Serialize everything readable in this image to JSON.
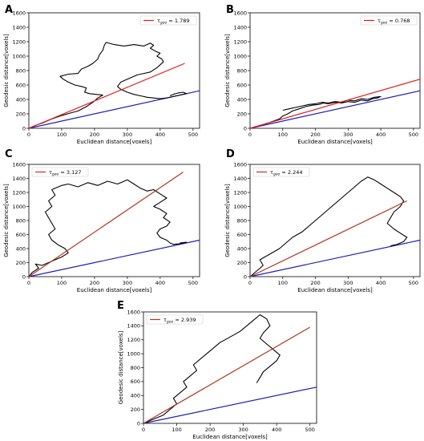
{
  "chart_data": [
    {
      "panel": "A",
      "type": "line",
      "xlabel": "Euclidean distance[voxels]",
      "ylabel": "Geodesic distance[voxels]",
      "xlim": [
        0,
        520
      ],
      "ylim": [
        0,
        1600
      ],
      "xticks": [
        0,
        100,
        200,
        300,
        400,
        500
      ],
      "yticks": [
        0,
        200,
        400,
        600,
        800,
        1000,
        1200,
        1400,
        1600
      ],
      "legend": {
        "symbol": "τ",
        "subscript": "geo",
        "value": "1.789",
        "position": "top-right"
      },
      "fit_line": {
        "color": "#e3191c",
        "x": [
          0,
          475
        ],
        "y": [
          0,
          900
        ]
      },
      "identity_line": {
        "color": "#1d1dbe",
        "x": [
          0,
          520
        ],
        "y": [
          0,
          520
        ]
      },
      "geodesic_curve": {
        "color": "#000000",
        "x": [
          0,
          20,
          45,
          70,
          95,
          125,
          150,
          175,
          195,
          210,
          225,
          205,
          185,
          170,
          175,
          160,
          140,
          120,
          105,
          95,
          120,
          150,
          160,
          180,
          195,
          210,
          215,
          225,
          230,
          235,
          260,
          290,
          320,
          350,
          370,
          380,
          370,
          385,
          400,
          390,
          405,
          410,
          400,
          390,
          380,
          370,
          350,
          330,
          310,
          300,
          280,
          270,
          280,
          300,
          320,
          340,
          360,
          380,
          400,
          420,
          440,
          460,
          470,
          480,
          470,
          455,
          440,
          430
        ],
        "y": [
          0,
          40,
          80,
          130,
          170,
          210,
          240,
          300,
          360,
          420,
          460,
          470,
          480,
          500,
          560,
          580,
          600,
          640,
          680,
          720,
          750,
          760,
          820,
          860,
          900,
          960,
          1020,
          1080,
          1150,
          1190,
          1160,
          1140,
          1160,
          1140,
          1180,
          1150,
          1110,
          1070,
          1040,
          1000,
          960,
          920,
          880,
          840,
          810,
          780,
          760,
          740,
          700,
          680,
          640,
          580,
          540,
          500,
          470,
          450,
          430,
          420,
          410,
          420,
          440,
          460,
          470,
          480,
          500,
          490,
          470,
          450
        ]
      }
    },
    {
      "panel": "B",
      "type": "line",
      "xlabel": "Euclidean distance[voxels]",
      "ylabel": "Geodesic distance[voxels]",
      "xlim": [
        0,
        520
      ],
      "ylim": [
        0,
        1600
      ],
      "xticks": [
        0,
        100,
        200,
        300,
        400,
        500
      ],
      "yticks": [
        0,
        200,
        400,
        600,
        800,
        1000,
        1200,
        1400,
        1600
      ],
      "legend": {
        "symbol": "τ",
        "subscript": "geo",
        "value": "0.768",
        "position": "top-right"
      },
      "fit_line": {
        "color": "#e3191c",
        "x": [
          0,
          520
        ],
        "y": [
          0,
          680
        ]
      },
      "identity_line": {
        "color": "#1d1dbe",
        "x": [
          0,
          520
        ],
        "y": [
          0,
          520
        ]
      },
      "geodesic_curve": {
        "color": "#000000",
        "x": [
          0,
          30,
          60,
          90,
          100,
          115,
          130,
          150,
          170,
          190,
          210,
          225,
          240,
          260,
          280,
          300,
          320,
          340,
          360,
          375,
          390,
          400,
          380,
          360,
          340,
          320,
          300,
          280,
          260,
          240,
          220,
          200,
          180,
          160,
          140,
          120,
          100
        ],
        "y": [
          0,
          40,
          80,
          130,
          170,
          200,
          240,
          270,
          300,
          320,
          330,
          350,
          340,
          360,
          350,
          370,
          360,
          390,
          380,
          410,
          420,
          440,
          430,
          400,
          410,
          380,
          390,
          360,
          370,
          350,
          360,
          340,
          330,
          310,
          290,
          270,
          250
        ]
      }
    },
    {
      "panel": "C",
      "type": "line",
      "xlabel": "Euclidean distance[voxels]",
      "ylabel": "Geodesic distance[voxels]",
      "xlim": [
        0,
        520
      ],
      "ylim": [
        0,
        1600
      ],
      "xticks": [
        0,
        100,
        200,
        300,
        400,
        500
      ],
      "yticks": [
        0,
        200,
        400,
        600,
        800,
        1000,
        1200,
        1400,
        1600
      ],
      "legend": {
        "symbol": "τ",
        "subscript": "geo",
        "value": "3.127",
        "position": "top-left"
      },
      "fit_line": {
        "color": "#b3361c",
        "x": [
          0,
          470
        ],
        "y": [
          0,
          1490
        ]
      },
      "identity_line": {
        "color": "#1d1dbe",
        "x": [
          0,
          520
        ],
        "y": [
          0,
          520
        ]
      },
      "geodesic_curve": {
        "color": "#000000",
        "x": [
          0,
          10,
          30,
          20,
          40,
          60,
          80,
          100,
          120,
          110,
          90,
          70,
          60,
          80,
          70,
          60,
          50,
          70,
          60,
          80,
          70,
          100,
          120,
          150,
          180,
          210,
          240,
          270,
          300,
          320,
          340,
          360,
          380,
          400,
          420,
          400,
          380,
          400,
          420,
          410,
          430,
          420,
          400,
          390,
          400,
          420,
          430,
          440,
          460,
          480,
          460
        ],
        "y": [
          0,
          60,
          120,
          180,
          160,
          200,
          240,
          280,
          340,
          400,
          450,
          520,
          600,
          680,
          760,
          840,
          920,
          1000,
          1080,
          1160,
          1240,
          1300,
          1320,
          1280,
          1340,
          1300,
          1360,
          1320,
          1380,
          1320,
          1260,
          1220,
          1240,
          1180,
          1120,
          1060,
          1000,
          960,
          900,
          840,
          780,
          720,
          680,
          620,
          560,
          520,
          480,
          460,
          470,
          490,
          480
        ]
      }
    },
    {
      "panel": "D",
      "type": "line",
      "xlabel": "Euclidean distance[voxels]",
      "ylabel": "Geodesic distance[voxels]",
      "xlim": [
        0,
        520
      ],
      "ylim": [
        0,
        1600
      ],
      "xticks": [
        0,
        100,
        200,
        300,
        400,
        500
      ],
      "yticks": [
        0,
        200,
        400,
        600,
        800,
        1000,
        1200,
        1400,
        1600
      ],
      "legend": {
        "symbol": "τ",
        "subscript": "geo",
        "value": "2.244",
        "position": "top-left"
      },
      "fit_line": {
        "color": "#b3361c",
        "x": [
          0,
          480
        ],
        "y": [
          0,
          1080
        ]
      },
      "identity_line": {
        "color": "#1d1dbe",
        "x": [
          0,
          520
        ],
        "y": [
          0,
          520
        ]
      },
      "geodesic_curve": {
        "color": "#000000",
        "x": [
          0,
          20,
          40,
          30,
          60,
          90,
          110,
          130,
          160,
          180,
          200,
          220,
          240,
          260,
          280,
          300,
          320,
          340,
          360,
          380,
          400,
          420,
          440,
          460,
          470,
          460,
          440,
          430,
          420,
          440,
          460,
          480,
          470,
          450,
          430
        ],
        "y": [
          0,
          80,
          160,
          240,
          320,
          400,
          480,
          560,
          640,
          720,
          800,
          880,
          960,
          1040,
          1120,
          1200,
          1280,
          1360,
          1420,
          1380,
          1320,
          1260,
          1200,
          1140,
          1080,
          1000,
          920,
          840,
          760,
          680,
          620,
          560,
          500,
          460,
          440
        ]
      }
    },
    {
      "panel": "E",
      "type": "line",
      "xlabel": "Euclidean distance[voxels]",
      "ylabel": "Geodesic distance[voxels]",
      "xlim": [
        0,
        520
      ],
      "ylim": [
        0,
        1600
      ],
      "xticks": [
        0,
        100,
        200,
        300,
        400,
        500
      ],
      "yticks": [
        0,
        200,
        400,
        600,
        800,
        1000,
        1200,
        1400,
        1600
      ],
      "legend": {
        "symbol": "τ",
        "subscript": "geo",
        "value": "2.939",
        "position": "top-left"
      },
      "fit_line": {
        "color": "#b3361c",
        "x": [
          0,
          500
        ],
        "y": [
          0,
          1380
        ]
      },
      "identity_line": {
        "color": "#1d1dbe",
        "x": [
          0,
          520
        ],
        "y": [
          0,
          520
        ]
      },
      "geodesic_curve": {
        "color": "#000000",
        "x": [
          0,
          30,
          60,
          80,
          100,
          90,
          110,
          130,
          120,
          140,
          160,
          150,
          170,
          190,
          210,
          230,
          260,
          290,
          310,
          330,
          350,
          370,
          380,
          360,
          350,
          370,
          390,
          410,
          400,
          380,
          360,
          350,
          340
        ],
        "y": [
          0,
          60,
          120,
          200,
          280,
          360,
          440,
          520,
          600,
          680,
          760,
          840,
          920,
          1000,
          1080,
          1160,
          1240,
          1320,
          1400,
          1480,
          1560,
          1500,
          1400,
          1300,
          1220,
          1140,
          1060,
          980,
          900,
          820,
          740,
          660,
          580
        ]
      }
    }
  ]
}
